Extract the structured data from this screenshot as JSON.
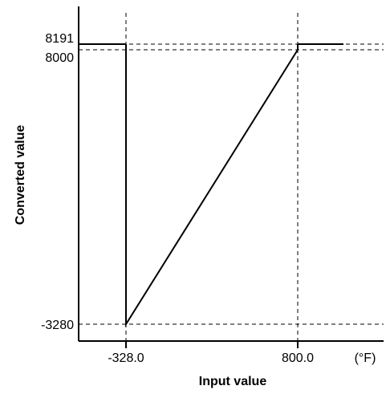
{
  "chart_data": {
    "type": "line",
    "title": "",
    "xlabel": "Input value",
    "ylabel": "Converted value",
    "x_unit": "(°F)",
    "x_ticks": [
      {
        "value": -328.0,
        "label": "-328.0"
      },
      {
        "value": 800.0,
        "label": "800.0"
      }
    ],
    "y_ticks": [
      {
        "value": 8191,
        "label": "8191"
      },
      {
        "value": 8000,
        "label": "8000"
      },
      {
        "value": -3280,
        "label": "-3280"
      }
    ],
    "series": [
      {
        "points": [
          {
            "x": -328.0,
            "y": 8191
          },
          {
            "x": -328.0,
            "y": -3280
          },
          {
            "x": 800.0,
            "y": 8000
          },
          {
            "x": 800.0,
            "y": 8191
          }
        ]
      }
    ],
    "left_segment": {
      "x_from": -580.0,
      "x_to": -328.0,
      "y": 8191
    },
    "right_segment": {
      "x_from": 800.0,
      "x_to": 1300.0,
      "y": 8191
    },
    "grid": "dashed reference lines at tick values",
    "colors": {
      "line": "#000000",
      "reference": "#000000",
      "background": "#ffffff"
    }
  }
}
